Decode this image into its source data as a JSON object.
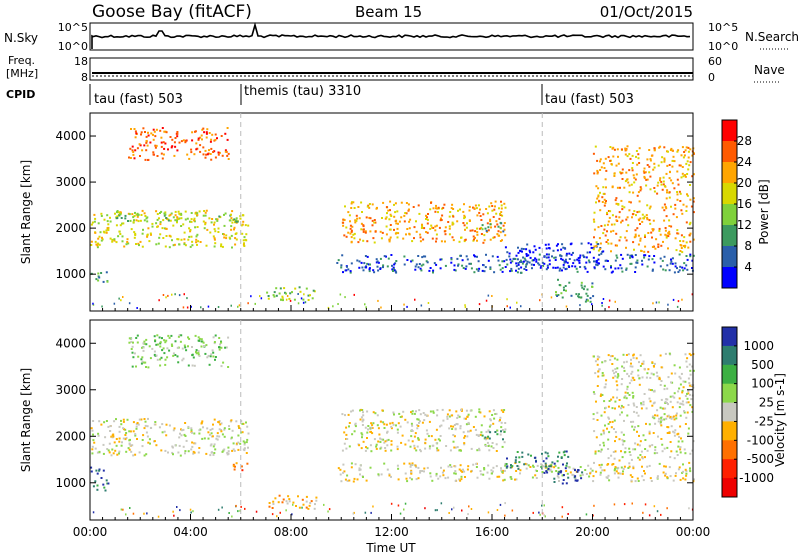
{
  "header": {
    "station": "Goose Bay (fitACF)",
    "beam": "Beam 15",
    "date": "01/Oct/2015"
  },
  "chart_data": [
    {
      "type": "line",
      "panel": "noise",
      "left_label": "N.Sky",
      "right_label": "N.Search",
      "left_ticks": [
        "10^5",
        "10^0"
      ],
      "right_ticks": [
        "10^5",
        "10^0"
      ]
    },
    {
      "type": "line",
      "panel": "frequency",
      "left_label": "Freq.",
      "left_unit": "[MHz]",
      "right_label": "Nave",
      "left_ticks": [
        "18",
        "8"
      ],
      "right_ticks": [
        "60",
        "0"
      ]
    },
    {
      "type": "table",
      "panel": "cpid",
      "label": "CPID",
      "segments": [
        {
          "start_hour": 0,
          "end_hour": 6,
          "name": "tau (fast) 503"
        },
        {
          "start_hour": 6,
          "end_hour": 18,
          "name": "themis (tau) 3310"
        },
        {
          "start_hour": 18,
          "end_hour": 24,
          "name": "tau (fast) 503"
        }
      ]
    },
    {
      "type": "heatmap",
      "panel": "power",
      "ylabel": "Slant Range [km]",
      "yticks": [
        1000,
        2000,
        3000,
        4000
      ],
      "ylim": [
        200,
        4500
      ],
      "colorbar_label": "Power [dB]",
      "colorbar_ticks": [
        "28",
        "24",
        "20",
        "16",
        "12",
        "8",
        "4"
      ],
      "colors": [
        "#ff0000",
        "#ff5a00",
        "#ffa500",
        "#d8d800",
        "#7fd13b",
        "#3c9a5f",
        "#2a5faa",
        "#0000ff"
      ],
      "echo_bands": [
        {
          "t0": 0.0,
          "t1": 0.7,
          "r0": 850,
          "r1": 1150,
          "level": 5
        },
        {
          "t0": 0.0,
          "t1": 6.3,
          "r0": 1600,
          "r1": 2400,
          "level": 3
        },
        {
          "t0": 0.6,
          "t1": 6.0,
          "r0": 2150,
          "r1": 2350,
          "level": 4
        },
        {
          "t0": 1.5,
          "t1": 5.5,
          "r0": 3500,
          "r1": 4200,
          "level": 1
        },
        {
          "t0": 7.0,
          "t1": 9.0,
          "r0": 450,
          "r1": 750,
          "level": 4
        },
        {
          "t0": 9.8,
          "t1": 24.0,
          "r0": 1050,
          "r1": 1450,
          "level": 6
        },
        {
          "t0": 10.0,
          "t1": 16.5,
          "r0": 1700,
          "r1": 2600,
          "level": 2
        },
        {
          "t0": 15.5,
          "t1": 16.5,
          "r0": 1950,
          "r1": 2150,
          "level": 5
        },
        {
          "t0": 16.5,
          "t1": 20.5,
          "r0": 1150,
          "r1": 1700,
          "level": 7
        },
        {
          "t0": 18.5,
          "t1": 20.0,
          "r0": 400,
          "r1": 900,
          "level": 5
        },
        {
          "t0": 20.0,
          "t1": 24.0,
          "r0": 1500,
          "r1": 3800,
          "level": 2
        }
      ]
    },
    {
      "type": "heatmap",
      "panel": "velocity",
      "ylabel": "Slant Range [km]",
      "yticks": [
        1000,
        2000,
        3000,
        4000
      ],
      "ylim": [
        200,
        4500
      ],
      "colorbar_label": "Velocity [m s-1]",
      "colorbar_ticks": [
        "1000",
        "500",
        "100",
        "25",
        "-25",
        "-100",
        "-500",
        "-1000"
      ],
      "colors": [
        "#2230a8",
        "#2e7d6f",
        "#3cb043",
        "#8cd84a",
        "#c8c8c0",
        "#ffb000",
        "#ff7000",
        "#ff2000",
        "#ee0000"
      ],
      "echo_bands": [
        {
          "t0": 0.0,
          "t1": 0.7,
          "r0": 850,
          "r1": 1150,
          "level": 1
        },
        {
          "t0": 0.0,
          "t1": 0.7,
          "r0": 1200,
          "r1": 1400,
          "level": 0
        },
        {
          "t0": 0.0,
          "t1": 6.3,
          "r0": 1600,
          "r1": 2400,
          "level": 4
        },
        {
          "t0": 1.5,
          "t1": 5.5,
          "r0": 3500,
          "r1": 4200,
          "level": 3
        },
        {
          "t0": 5.5,
          "t1": 6.3,
          "r0": 1250,
          "r1": 1450,
          "level": 6
        },
        {
          "t0": 7.0,
          "t1": 9.0,
          "r0": 450,
          "r1": 750,
          "level": 5
        },
        {
          "t0": 9.8,
          "t1": 24.0,
          "r0": 1050,
          "r1": 1450,
          "level": 4
        },
        {
          "t0": 10.0,
          "t1": 16.5,
          "r0": 1700,
          "r1": 2600,
          "level": 4
        },
        {
          "t0": 15.5,
          "t1": 16.5,
          "r0": 1950,
          "r1": 2150,
          "level": 2
        },
        {
          "t0": 16.5,
          "t1": 19.0,
          "r0": 1300,
          "r1": 1700,
          "level": 1
        },
        {
          "t0": 18.0,
          "t1": 19.6,
          "r0": 1000,
          "r1": 1300,
          "level": 0
        },
        {
          "t0": 20.0,
          "t1": 24.0,
          "r0": 1500,
          "r1": 3800,
          "level": 4
        }
      ]
    }
  ],
  "xaxis": {
    "label": "Time UT",
    "ticks": [
      "00:00",
      "04:00",
      "08:00",
      "12:00",
      "16:00",
      "20:00",
      "00:00"
    ],
    "tick_hours": [
      0,
      4,
      8,
      12,
      16,
      20,
      24
    ],
    "xlim_hours": [
      0,
      24
    ]
  }
}
